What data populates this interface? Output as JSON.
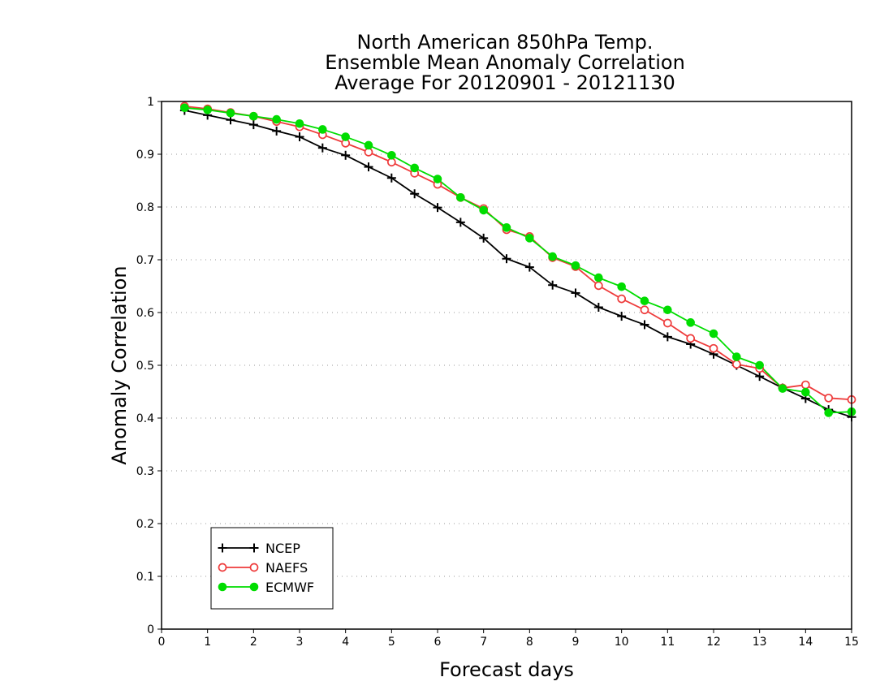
{
  "chart_data": {
    "type": "line",
    "title_lines": [
      "North American 850hPa Temp.",
      "Ensemble Mean Anomaly Correlation",
      "Average For 20120901 - 20121130"
    ],
    "xlabel": "Forecast days",
    "ylabel": "Anomaly Correlation",
    "xlim": [
      0,
      15
    ],
    "ylim": [
      0,
      1
    ],
    "xticks": [
      0,
      1,
      2,
      3,
      4,
      5,
      6,
      7,
      8,
      9,
      10,
      11,
      12,
      13,
      14,
      15
    ],
    "yticks": [
      0,
      0.1,
      0.2,
      0.3,
      0.4,
      0.5,
      0.6,
      0.7,
      0.8,
      0.9,
      1
    ],
    "ytick_labels": [
      "0",
      "0.1",
      "0.2",
      "0.3",
      "0.4",
      "0.5",
      "0.6",
      "0.7",
      "0.8",
      "0.9",
      "1"
    ],
    "grid": "horizontal dotted",
    "legend_position": "bottom-left",
    "x": [
      0.5,
      1,
      1.5,
      2,
      2.5,
      3,
      3.5,
      4,
      4.5,
      5,
      5.5,
      6,
      6.5,
      7,
      7.5,
      8,
      8.5,
      9,
      9.5,
      10,
      10.5,
      11,
      11.5,
      12,
      12.5,
      13,
      13.5,
      14,
      14.5,
      15
    ],
    "series": [
      {
        "name": "NCEP",
        "color": "#000000",
        "marker": "plus",
        "values": [
          0.983,
          0.974,
          0.965,
          0.956,
          0.944,
          0.933,
          0.912,
          0.898,
          0.876,
          0.855,
          0.825,
          0.799,
          0.771,
          0.741,
          0.702,
          0.686,
          0.652,
          0.637,
          0.61,
          0.593,
          0.577,
          0.554,
          0.54,
          0.521,
          0.5,
          0.479,
          0.457,
          0.437,
          0.416,
          0.402
        ]
      },
      {
        "name": "NAEFS",
        "color": "#ee3b3b",
        "marker": "open-circle",
        "values": [
          0.991,
          0.986,
          0.979,
          0.972,
          0.962,
          0.952,
          0.937,
          0.921,
          0.904,
          0.885,
          0.864,
          0.843,
          0.818,
          0.797,
          0.757,
          0.744,
          0.704,
          0.687,
          0.651,
          0.626,
          0.605,
          0.58,
          0.551,
          0.532,
          0.502,
          0.494,
          0.457,
          0.463,
          0.438,
          0.435
        ]
      },
      {
        "name": "ECMWF",
        "color": "#00dd00",
        "marker": "filled-circle",
        "values": [
          0.988,
          0.984,
          0.978,
          0.972,
          0.966,
          0.958,
          0.947,
          0.933,
          0.917,
          0.898,
          0.874,
          0.853,
          0.818,
          0.794,
          0.761,
          0.741,
          0.706,
          0.689,
          0.666,
          0.649,
          0.622,
          0.605,
          0.581,
          0.56,
          0.516,
          0.5,
          0.456,
          0.449,
          0.41,
          0.412
        ]
      }
    ]
  }
}
